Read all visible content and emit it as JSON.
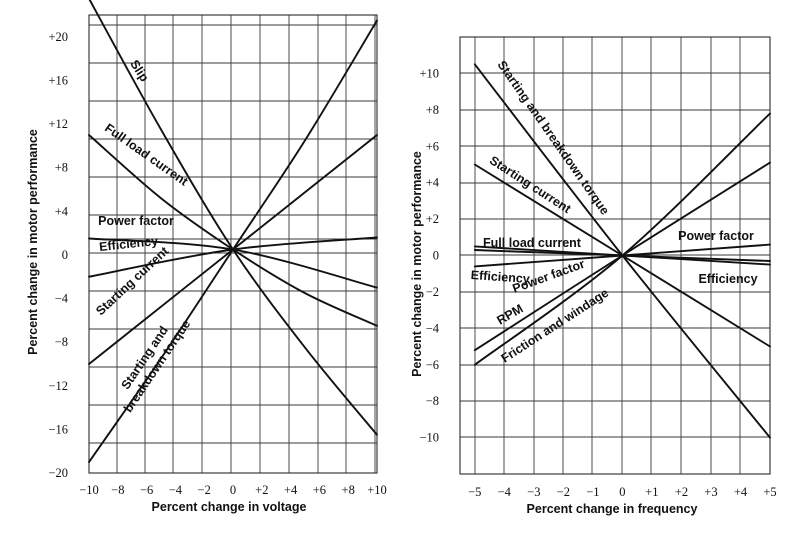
{
  "chart_data": [
    {
      "type": "line",
      "xlabel": "Percent change in voltage",
      "ylabel": "Percent change in motor performance",
      "xlim": [
        -10,
        10
      ],
      "ylim": [
        -20,
        22
      ],
      "grid": true,
      "x_ticks": [
        -10,
        -8,
        -6,
        -4,
        -2,
        0,
        2,
        4,
        6,
        8,
        10
      ],
      "x_tick_labels": [
        "−10",
        "−8",
        "−6",
        "−4",
        "−2",
        "0",
        "+2",
        "+4",
        "+6",
        "+8",
        "+10"
      ],
      "y_ticks": [
        -20,
        -16,
        -12,
        -8,
        -4,
        0,
        4,
        8,
        12,
        16,
        20
      ],
      "y_tick_labels": [
        "−20",
        "−16",
        "−12",
        "−8",
        "−4",
        "0",
        "+4",
        "+8",
        "+12",
        "+16",
        "+20"
      ],
      "series": [
        {
          "name": "Slip",
          "x": [
            -10,
            -5,
            0,
            5,
            10
          ],
          "y": [
            23.5,
            11.5,
            0.5,
            -8.5,
            -16.5
          ]
        },
        {
          "name": "Full load current",
          "x": [
            -10,
            -5,
            0,
            5,
            10
          ],
          "y": [
            11,
            5.2,
            0.5,
            -3.5,
            -6.5
          ]
        },
        {
          "name": "Power factor",
          "x": [
            -10,
            0,
            10
          ],
          "y": [
            1.5,
            0.5,
            -3
          ]
        },
        {
          "name": "Efficiency",
          "x": [
            -10,
            0,
            10
          ],
          "y": [
            -2,
            0.5,
            1.6
          ]
        },
        {
          "name": "Starting current",
          "x": [
            -10,
            0,
            10
          ],
          "y": [
            -10,
            0.5,
            11
          ]
        },
        {
          "name": "Starting and breakdown torque",
          "x": [
            -10,
            -5,
            0,
            5,
            10
          ],
          "y": [
            -19,
            -9.5,
            0.5,
            10.5,
            21.5
          ]
        }
      ]
    },
    {
      "type": "line",
      "xlabel": "Percent change in frequency",
      "ylabel": "Percent change in motor performance",
      "xlim": [
        -5.5,
        5
      ],
      "ylim": [
        -12,
        12
      ],
      "grid": true,
      "x_ticks": [
        -5,
        -4,
        -3,
        -2,
        -1,
        0,
        1,
        2,
        3,
        4,
        5
      ],
      "x_tick_labels": [
        "−5",
        "−4",
        "−3",
        "−2",
        "−1",
        "0",
        "+1",
        "+2",
        "+3",
        "+4",
        "+5"
      ],
      "y_ticks": [
        -10,
        -8,
        -6,
        -4,
        -2,
        0,
        2,
        4,
        6,
        8,
        10
      ],
      "y_tick_labels": [
        "−10",
        "−8",
        "−6",
        "−4",
        "−2",
        "0",
        "+2",
        "+4",
        "+6",
        "+8",
        "+10"
      ],
      "series": [
        {
          "name": "Starting and breakdown torque",
          "x": [
            -5,
            0,
            5
          ],
          "y": [
            10.5,
            0,
            -10
          ]
        },
        {
          "name": "Starting current",
          "x": [
            -5,
            0,
            5
          ],
          "y": [
            5,
            0,
            -5
          ]
        },
        {
          "name": "Full load current",
          "x": [
            -5,
            0,
            5
          ],
          "y": [
            0.5,
            0,
            -0.5
          ]
        },
        {
          "name": "Efficiency",
          "x": [
            -5,
            0,
            5
          ],
          "y": [
            0.3,
            0,
            -0.3
          ]
        },
        {
          "name": "Power factor",
          "x": [
            -5,
            0,
            5
          ],
          "y": [
            -0.6,
            0,
            0.6
          ]
        },
        {
          "name": "RPM",
          "x": [
            -5,
            0,
            5
          ],
          "y": [
            -5.2,
            0,
            5.1
          ]
        },
        {
          "name": "Friction and windage",
          "x": [
            -5,
            0,
            5
          ],
          "y": [
            -6,
            0,
            7.8
          ]
        }
      ]
    }
  ]
}
